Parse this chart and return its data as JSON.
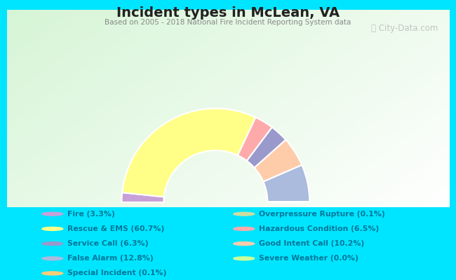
{
  "title": "Incident types in McLean, VA",
  "subtitle": "Based on 2005 - 2018 National Fire Incident Reporting System data",
  "watermark": "ⓘ City-Data.com",
  "bg_color": "#00e5ff",
  "categories_left": [
    "Fire (3.3%)",
    "Rescue & EMS (60.7%)",
    "Service Call (6.3%)",
    "False Alarm (12.8%)",
    "Special Incident (0.1%)"
  ],
  "categories_right": [
    "Overpressure Rupture (0.1%)",
    "Hazardous Condition (6.5%)",
    "Good Intent Call (10.2%)",
    "Severe Weather (0.0%)"
  ],
  "slice_order": [
    0,
    1,
    5,
    2,
    6,
    7,
    3,
    8,
    4
  ],
  "values": [
    3.3,
    60.7,
    6.3,
    12.8,
    0.1,
    0.1,
    6.5,
    10.2,
    0.0
  ],
  "colors": [
    "#c8a0d8",
    "#ffff88",
    "#9999cc",
    "#aabbdd",
    "#ffcc77",
    "#ccdda0",
    "#ffaaaa",
    "#ffccaa",
    "#ccff99"
  ],
  "legend_text_color": "#007799",
  "title_color": "#222222",
  "subtitle_color": "#888888",
  "outer_r": 0.38,
  "inner_r": 0.21,
  "figsize": [
    6.5,
    4.0
  ],
  "dpi": 100
}
